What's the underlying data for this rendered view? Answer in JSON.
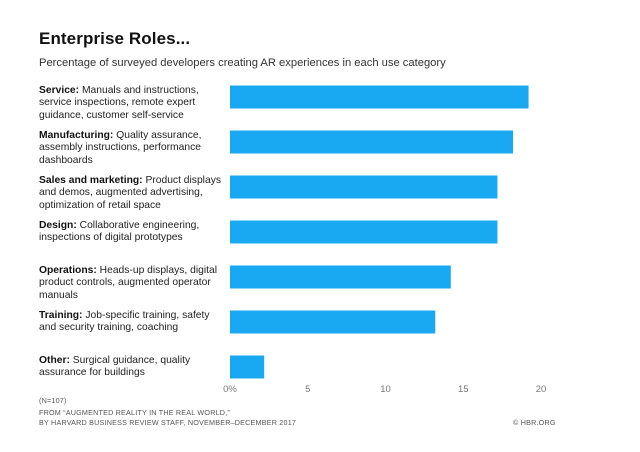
{
  "title": "Enterprise Roles...",
  "subtitle": "Percentage of surveyed developers creating AR experiences in each use category",
  "colors": {
    "bar": "#18a9f2",
    "text": "#222222",
    "axis": "#777777"
  },
  "chart_data": {
    "type": "bar",
    "orientation": "horizontal",
    "categories": [
      {
        "name": "Service:",
        "desc": "Manuals and instructions, service inspections, remote expert guidance, customer self-service"
      },
      {
        "name": "Manufacturing:",
        "desc": "Quality assurance, assembly instructions, performance dashboards"
      },
      {
        "name": "Sales and marketing:",
        "desc": "Product displays and demos, augmented advertising, optimization of retail space"
      },
      {
        "name": "Design:",
        "desc": "Collaborative engineering, inspections of digital prototypes"
      },
      {
        "name": "Operations:",
        "desc": "Heads-up displays, digital product controls, augmented operator manuals"
      },
      {
        "name": "Training:",
        "desc": "Job-specific training, safety and security training, coaching"
      },
      {
        "name": "Other:",
        "desc": "Surgical guidance, quality assurance for buildings"
      }
    ],
    "values": [
      19.2,
      18.2,
      17.2,
      17.2,
      14.2,
      13.2,
      2.2
    ],
    "xlim": [
      0,
      20
    ],
    "xticks": [
      0,
      5,
      10,
      15,
      20
    ],
    "xtick_labels": [
      "0%",
      "5",
      "10",
      "15",
      "20"
    ],
    "grid": false,
    "legend": "none"
  },
  "footer": {
    "n": "(N=107)",
    "source_line1": "FROM  “AUGMENTED REALITY IN THE REAL WORLD,”",
    "source_line2": "BY HARVARD BUSINESS REVIEW STAFF, NOVEMBER–DECEMBER 2017",
    "credit": "© HBR.ORG"
  }
}
